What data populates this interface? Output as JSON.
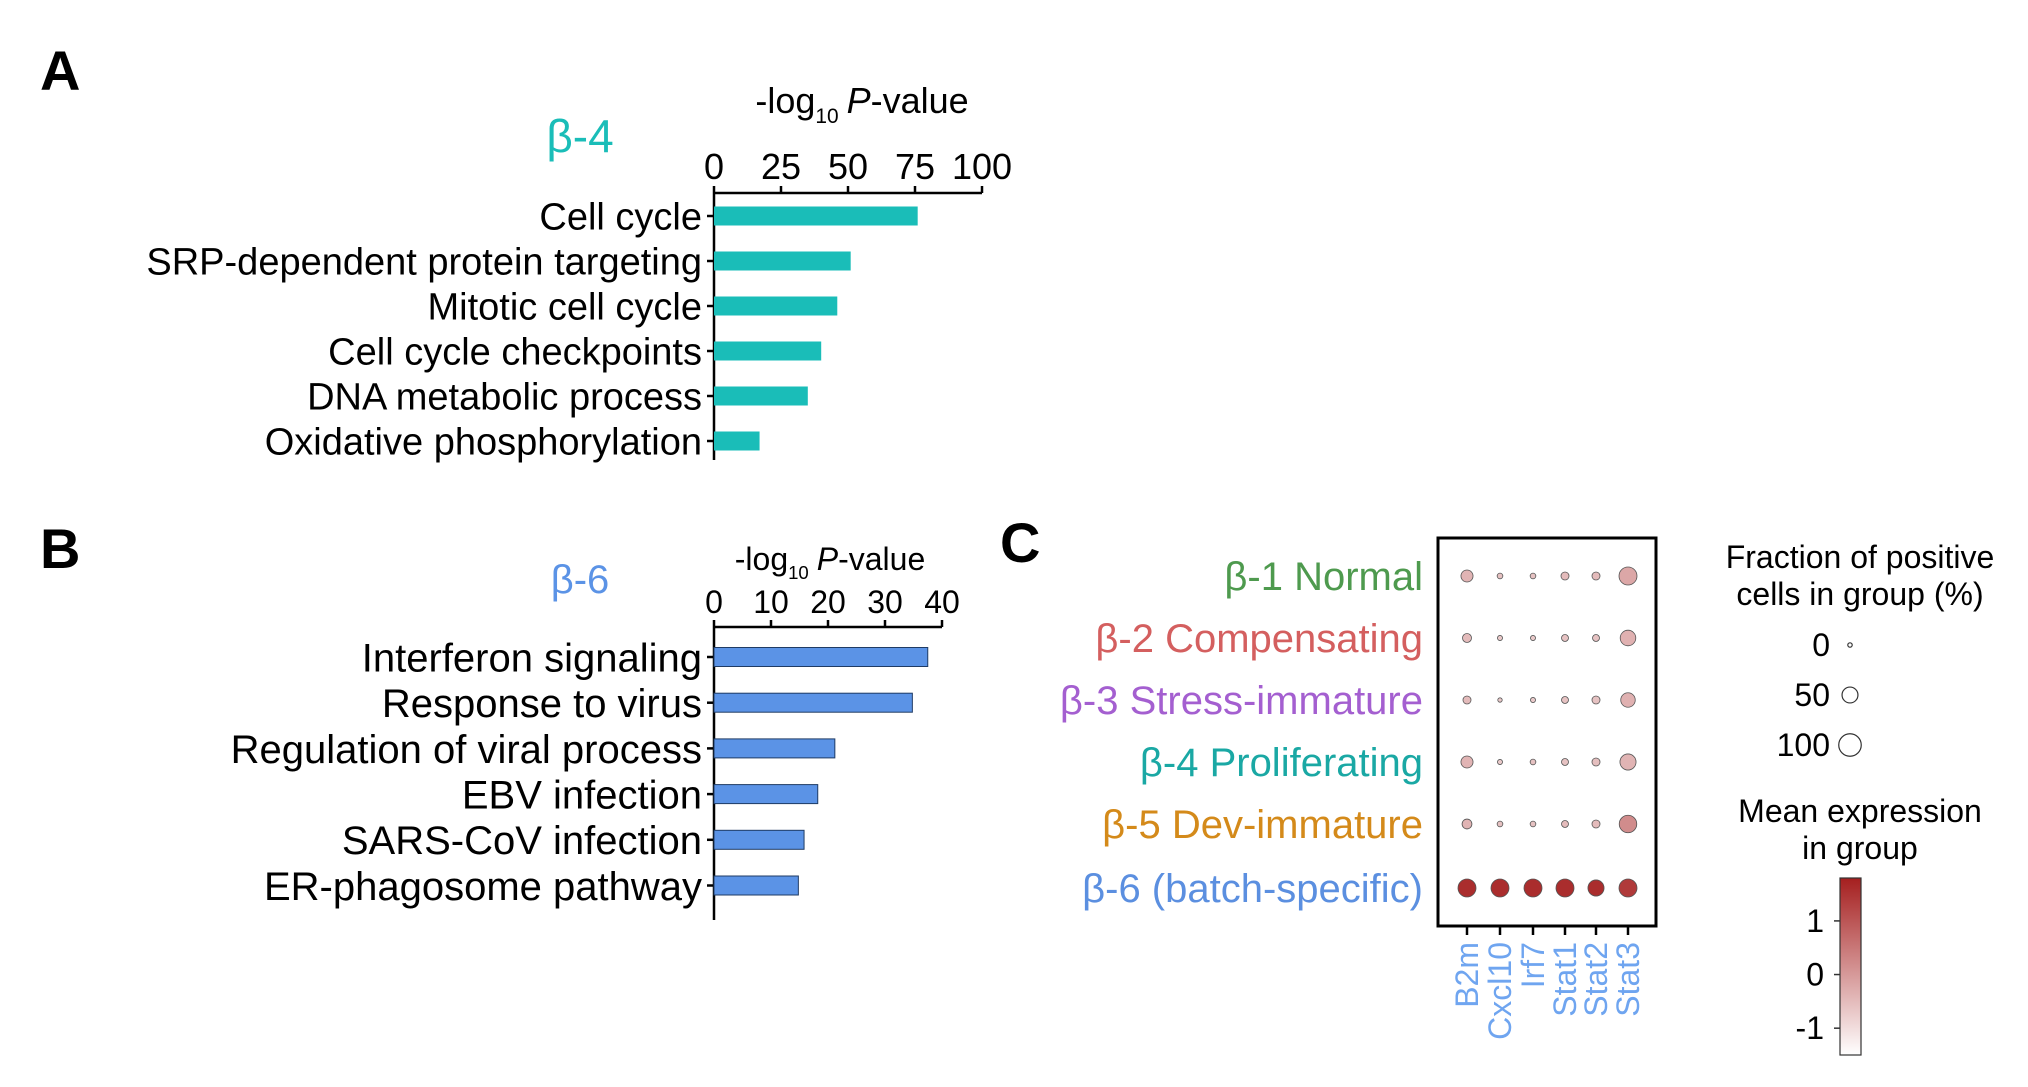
{
  "colors": {
    "teal": "#1ABDB8",
    "blue": "#5B93E6",
    "axis": "#000000",
    "dot_low": "#FFFFFF",
    "dot_high": "#A51F1F"
  },
  "panels": {
    "A": {
      "letter": "A"
    },
    "B": {
      "letter": "B"
    },
    "C": {
      "letter": "C"
    }
  },
  "chart_data": [
    {
      "type": "bar",
      "panel": "A",
      "group_label": "β-4",
      "axis_label": {
        "prefix": "-log",
        "sub": "10",
        "italic": "P",
        "suffix": "-value"
      },
      "xlim": [
        0,
        100
      ],
      "ticks": [
        0,
        25,
        50,
        75,
        100
      ],
      "categories": [
        "Cell cycle",
        "SRP-dependent protein targeting",
        "Mitotic cell cycle",
        "Cell cycle checkpoints",
        "DNA metabolic process",
        "Oxidative phosphorylation"
      ],
      "values": [
        76,
        51,
        46,
        40,
        35,
        17
      ],
      "orientation": "horizontal",
      "axis_position": "top"
    },
    {
      "type": "bar",
      "panel": "B",
      "group_label": "β-6",
      "axis_label": {
        "prefix": "-log",
        "sub": "10",
        "italic": "P",
        "suffix": "-value"
      },
      "xlim": [
        0,
        40
      ],
      "ticks": [
        0,
        10,
        20,
        30,
        40
      ],
      "categories": [
        "Interferon signaling",
        "Response to virus",
        "Regulation of viral process",
        "EBV infection",
        "SARS-CoV infection",
        "ER-phagosome pathway"
      ],
      "values": [
        37.5,
        34.8,
        21.2,
        18.2,
        15.8,
        14.8
      ],
      "orientation": "horizontal",
      "axis_position": "top"
    },
    {
      "type": "dotplot",
      "panel": "C",
      "rows": [
        {
          "label": "β-1 Normal",
          "color": "#4E9A4E"
        },
        {
          "label": "β-2 Compensating",
          "color": "#D45F5F"
        },
        {
          "label": "β-3 Stress-immature",
          "color": "#A45FD0"
        },
        {
          "label": "β-4 Proliferating",
          "color": "#1AA8A4"
        },
        {
          "label": "β-5 Dev-immature",
          "color": "#D48A1A"
        },
        {
          "label": "β-6 (batch-specific)",
          "color": "#5B8FE0"
        }
      ],
      "columns": [
        "B2m",
        "Cxcl10",
        "Irf7",
        "Stat1",
        "Stat2",
        "Stat3"
      ],
      "column_color": "#6FA5F0",
      "fraction": [
        [
          45,
          10,
          10,
          20,
          20,
          100
        ],
        [
          25,
          8,
          8,
          15,
          15,
          75
        ],
        [
          20,
          5,
          8,
          15,
          20,
          65
        ],
        [
          45,
          8,
          10,
          15,
          20,
          80
        ],
        [
          30,
          10,
          10,
          15,
          20,
          95
        ],
        [
          100,
          100,
          100,
          100,
          80,
          100
        ]
      ],
      "expression": [
        [
          -0.4,
          -0.6,
          -0.6,
          -0.5,
          -0.5,
          -0.2
        ],
        [
          -0.5,
          -0.7,
          -0.7,
          -0.6,
          -0.6,
          -0.35
        ],
        [
          -0.5,
          -0.7,
          -0.7,
          -0.6,
          -0.6,
          -0.35
        ],
        [
          -0.4,
          -0.7,
          -0.6,
          -0.6,
          -0.55,
          -0.4
        ],
        [
          -0.4,
          -0.6,
          -0.6,
          -0.5,
          -0.5,
          0.2
        ],
        [
          1.6,
          1.6,
          1.6,
          1.6,
          1.6,
          1.4
        ]
      ],
      "fraction_legend": {
        "title_lines": [
          "Fraction of positive",
          "cells in group (%)"
        ],
        "entries": [
          0,
          50,
          100
        ]
      },
      "expression_legend": {
        "title_lines": [
          "Mean expression",
          "in group"
        ],
        "ticks": [
          1,
          0,
          -1
        ],
        "range": [
          -1.5,
          1.8
        ]
      }
    }
  ]
}
